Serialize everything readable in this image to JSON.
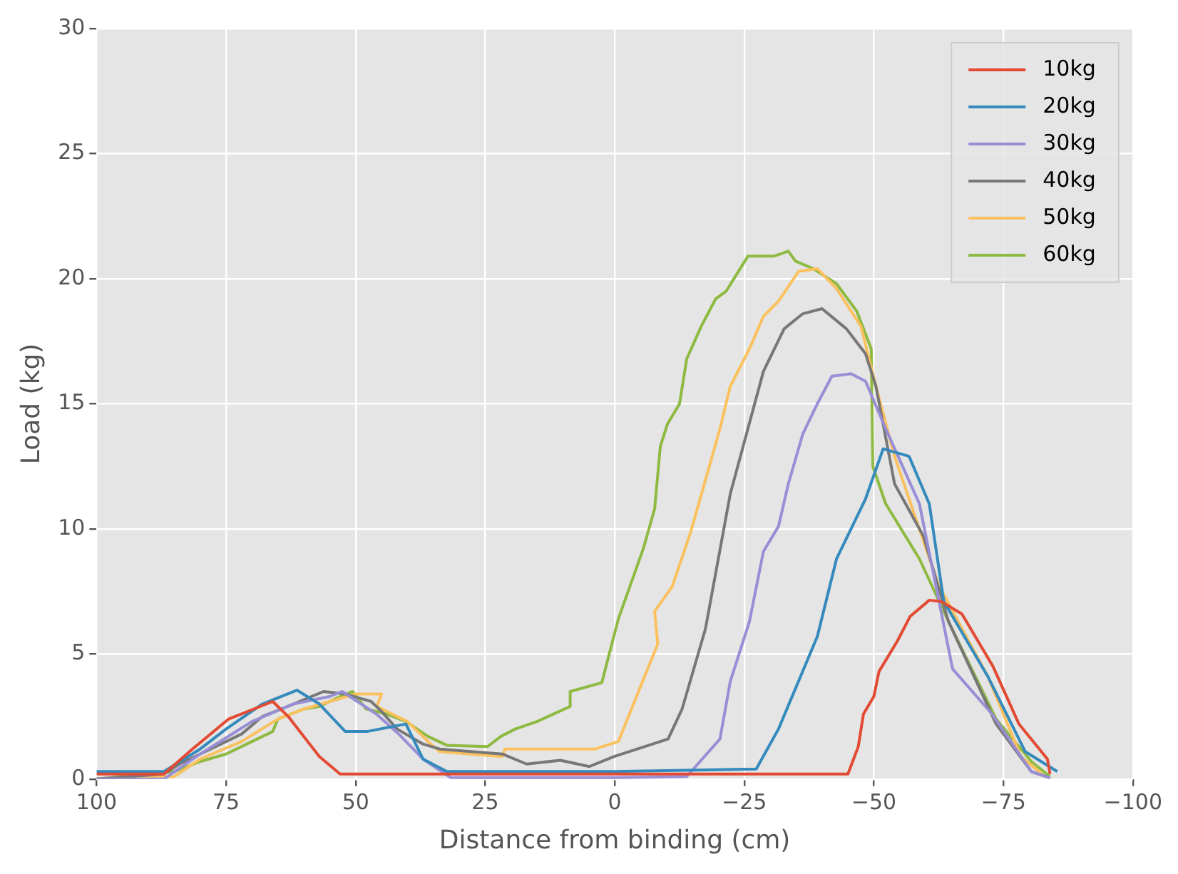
{
  "chart_data": {
    "type": "line",
    "xlabel": "Distance from binding (cm)",
    "ylabel": "Load (kg)",
    "xlim": [
      100,
      -100
    ],
    "ylim": [
      0,
      30
    ],
    "xticks": [
      100,
      75,
      50,
      25,
      0,
      -25,
      -50,
      -75,
      -100
    ],
    "yticks": [
      0,
      5,
      10,
      15,
      20,
      25,
      30
    ],
    "grid": true,
    "legend": "top right",
    "marker": "none",
    "line_style": "solid",
    "series": [
      {
        "name": "10kg",
        "color": "#e24a33",
        "x": [
          100,
          87,
          81.5,
          74.5,
          66,
          63,
          57,
          53,
          30,
          0,
          -45,
          -47,
          -48,
          -50,
          -51,
          -54.5,
          -57,
          -60.7,
          -63,
          -67,
          -73,
          -78,
          -83.5,
          -84
        ],
        "values": [
          0.2,
          0.2,
          1.2,
          2.4,
          3.1,
          2.5,
          0.9,
          0.2,
          0.2,
          0.2,
          0.2,
          1.3,
          2.6,
          3.3,
          4.3,
          5.5,
          6.5,
          7.15,
          7.1,
          6.6,
          4.5,
          2.2,
          0.8,
          0.2
        ]
      },
      {
        "name": "20kg",
        "color": "#348abd",
        "x": [
          100,
          87,
          80,
          75,
          68,
          61.3,
          57,
          52,
          47.8,
          40.3,
          37,
          32.4,
          0,
          -27.3,
          -31.6,
          -39.1,
          -42.8,
          -48.4,
          -51.8,
          -56.8,
          -60.7,
          -63.5,
          -72,
          -79.2,
          -85.4
        ],
        "values": [
          0.3,
          0.3,
          1.2,
          2.0,
          3.0,
          3.55,
          3.0,
          1.9,
          1.9,
          2.2,
          0.8,
          0.3,
          0.3,
          0.4,
          2.0,
          5.7,
          8.8,
          11.2,
          13.2,
          12.9,
          11.0,
          7.1,
          4.1,
          1.1,
          0.3
        ]
      },
      {
        "name": "30kg",
        "color": "#988ed5",
        "x": [
          100,
          87,
          80,
          70,
          62,
          55,
          52.6,
          46,
          41.7,
          37,
          31.6,
          0,
          -13.9,
          -20.3,
          -22.3,
          -26,
          -28.7,
          -31.6,
          -33.5,
          -36.3,
          -39.1,
          -41.9,
          -45.6,
          -48.4,
          -52.3,
          -58.8,
          -65.2,
          -72.8,
          -80.4,
          -84
        ],
        "values": [
          0,
          0,
          1.0,
          2.3,
          3.0,
          3.3,
          3.5,
          2.6,
          1.8,
          0.8,
          0.05,
          0.05,
          0.1,
          1.6,
          3.9,
          6.3,
          9.1,
          10.1,
          11.8,
          13.8,
          15.0,
          16.1,
          16.2,
          15.9,
          14.0,
          11.0,
          4.4,
          2.6,
          0.3,
          0.05
        ]
      },
      {
        "name": "40kg",
        "color": "#777777",
        "x": [
          100,
          87,
          84,
          78,
          72,
          68,
          62,
          56.2,
          52,
          47,
          45,
          42,
          37,
          33.8,
          21.7,
          17,
          10.5,
          4.9,
          0.1,
          -10.3,
          -13,
          -17.5,
          -22.3,
          -28.7,
          -32.7,
          -36.3,
          -40,
          -44.7,
          -48.4,
          -50.4,
          -54,
          -59.6,
          -64.4,
          -73.6,
          -80.4,
          -84
        ],
        "values": [
          0,
          0.2,
          0.6,
          1.2,
          1.8,
          2.5,
          3.0,
          3.5,
          3.4,
          3.1,
          2.7,
          2.0,
          1.4,
          1.2,
          1.0,
          0.6,
          0.75,
          0.5,
          0.9,
          1.6,
          2.8,
          6.0,
          11.4,
          16.3,
          18.0,
          18.6,
          18.8,
          18.0,
          17.0,
          15.7,
          11.8,
          9.7,
          6.3,
          2.2,
          0.3,
          0.05
        ]
      },
      {
        "name": "50kg",
        "color": "#fbc15e",
        "x": [
          100,
          85,
          80,
          72,
          65,
          60,
          55,
          50,
          45,
          45.9,
          40,
          36,
          33.8,
          21.7,
          21.2,
          3.8,
          -0.7,
          -8.3,
          -7.7,
          -11.1,
          -14.7,
          -20.3,
          -22.3,
          -26,
          -28.7,
          -31.6,
          -35.5,
          -39.1,
          -42.8,
          -47.5,
          -50.4,
          -54,
          -62.4,
          -72,
          -78.4,
          -83
        ],
        "values": [
          0,
          0.1,
          0.8,
          1.5,
          2.4,
          2.8,
          3.1,
          3.4,
          3.4,
          2.9,
          2.3,
          1.5,
          1.1,
          0.9,
          1.2,
          1.2,
          1.5,
          5.4,
          6.7,
          7.7,
          9.9,
          14.0,
          15.7,
          17.2,
          18.5,
          19.1,
          20.3,
          20.4,
          19.6,
          18.1,
          15.7,
          12.9,
          7.8,
          4.1,
          0.9,
          0.1
        ]
      },
      {
        "name": "60kg",
        "color": "#8eba42",
        "x": [
          100,
          85,
          80,
          75,
          70,
          66,
          65,
          60,
          57,
          53,
          50.6,
          48,
          44,
          40.3,
          36,
          32.4,
          24.5,
          22,
          19.2,
          15,
          8.6,
          8.6,
          2.5,
          -0.7,
          -5.5,
          -7.7,
          -8.8,
          -10.2,
          -12.5,
          -13.9,
          -16.7,
          -19.5,
          -21.5,
          -25.7,
          -30.7,
          -33.5,
          -34.9,
          -38.3,
          -42.8,
          -46.7,
          -49.5,
          -49.8,
          -52.3,
          -58.8,
          -64.4,
          -73.6,
          -80.4,
          -84
        ],
        "values": [
          0,
          0.3,
          0.7,
          1.0,
          1.5,
          1.9,
          2.4,
          2.8,
          2.9,
          3.3,
          3.5,
          2.8,
          2.6,
          2.3,
          1.7,
          1.35,
          1.3,
          1.7,
          2.0,
          2.3,
          2.9,
          3.5,
          3.85,
          6.4,
          9.2,
          10.8,
          13.3,
          14.2,
          15.0,
          16.8,
          18.1,
          19.2,
          19.5,
          20.9,
          20.9,
          21.1,
          20.7,
          20.4,
          19.8,
          18.7,
          17.2,
          12.5,
          11.0,
          8.8,
          6.3,
          2.4,
          0.7,
          0.1
        ]
      }
    ]
  }
}
